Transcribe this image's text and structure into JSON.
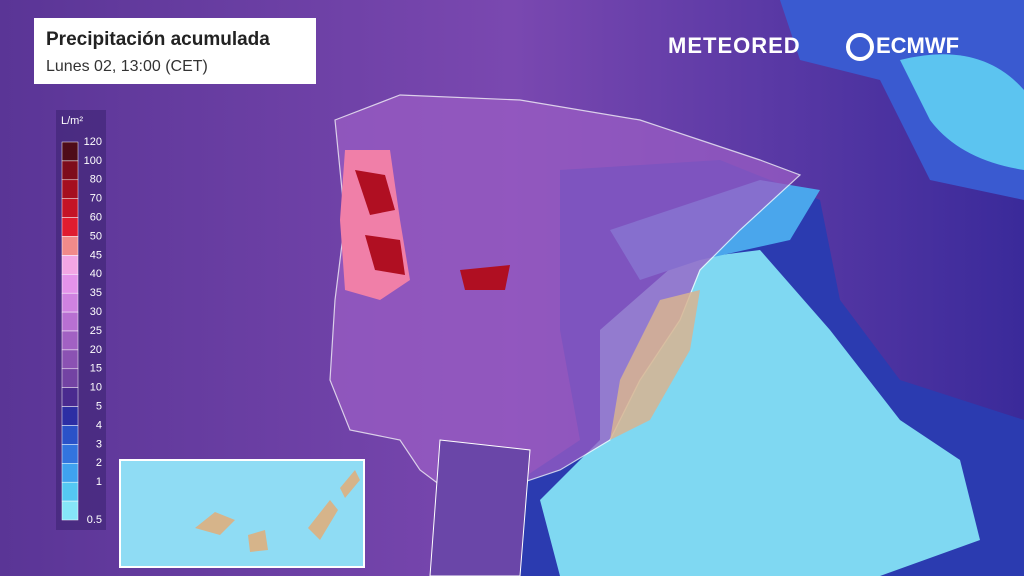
{
  "header": {
    "title": "Precipitación acumulada",
    "subtitle": "Lunes 02, 13:00 (CET)"
  },
  "brands": {
    "meteored": "METEORED",
    "ecmwf": "ECMWF"
  },
  "legend": {
    "unit": "L/m²",
    "levels": [
      {
        "value": 120,
        "color": "#4e0c18"
      },
      {
        "value": 100,
        "color": "#7e0d1c"
      },
      {
        "value": 80,
        "color": "#a50f1f"
      },
      {
        "value": 70,
        "color": "#c41426"
      },
      {
        "value": 60,
        "color": "#e01c30"
      },
      {
        "value": 50,
        "color": "#f28a8a"
      },
      {
        "value": 45,
        "color": "#f3a6e4"
      },
      {
        "value": 40,
        "color": "#e493ea"
      },
      {
        "value": 35,
        "color": "#cf82e0"
      },
      {
        "value": 30,
        "color": "#b870d2"
      },
      {
        "value": 25,
        "color": "#a261c3"
      },
      {
        "value": 20,
        "color": "#8b52b3"
      },
      {
        "value": 15,
        "color": "#7343a3"
      },
      {
        "value": 10,
        "color": "#4a2a8f"
      },
      {
        "value": 5,
        "color": "#2c2ea4"
      },
      {
        "value": 4,
        "color": "#2a52c8"
      },
      {
        "value": 3,
        "color": "#3274de"
      },
      {
        "value": 2,
        "color": "#3fa2ef"
      },
      {
        "value": 1,
        "color": "#55c8f2"
      },
      {
        "value": 0.5,
        "color": "#86e6f8"
      }
    ]
  }
}
